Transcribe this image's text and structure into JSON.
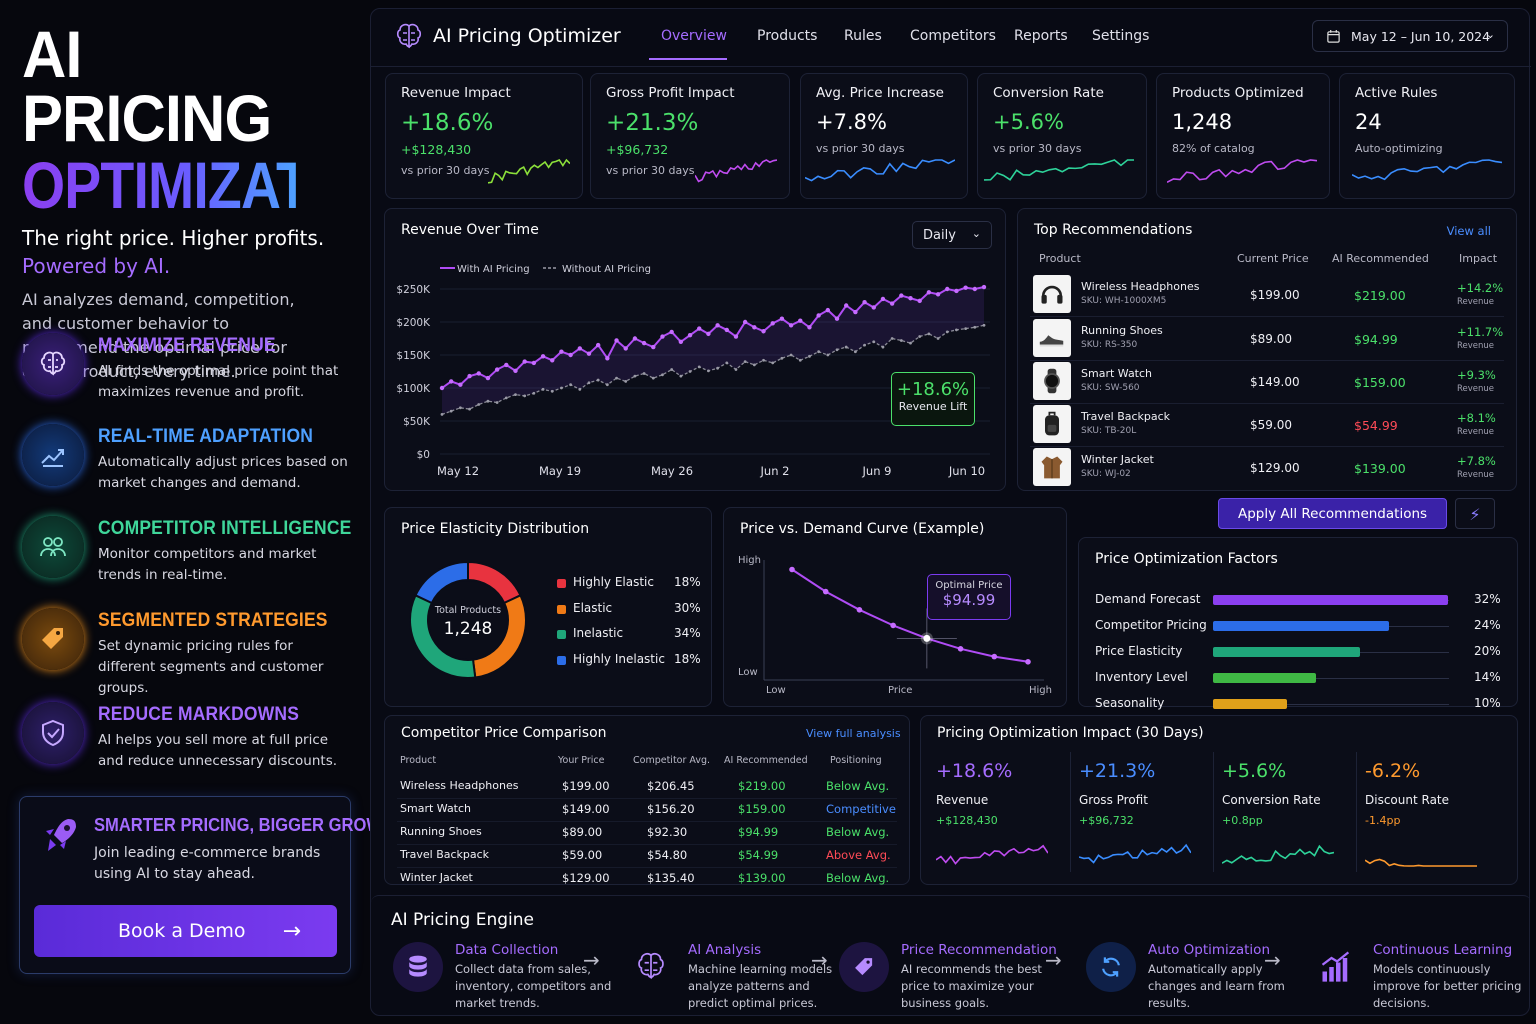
{
  "hero": {
    "title1": "AI PRICING",
    "title2": "OPTIMIZATION",
    "tagline": "The right price. Higher profits.",
    "tagline2": "Powered by AI.",
    "intro": "AI analyzes demand, competition, and customer behavior to recommend the optimal price for every product, every time."
  },
  "features": [
    {
      "title": "MAXIMIZE REVENUE",
      "desc": "AI finds the optimal price point that maximizes revenue and profit.",
      "icon": "brain-icon",
      "color": "#a56cff"
    },
    {
      "title": "REAL-TIME ADAPTATION",
      "desc": "Automatically adjust prices based on market changes and demand.",
      "icon": "trend-chart-icon",
      "color": "#4ea0ff"
    },
    {
      "title": "COMPETITOR INTELLIGENCE",
      "desc": "Monitor competitors and market trends in real-time.",
      "icon": "users-icon",
      "color": "#3fd69a"
    },
    {
      "title": "SEGMENTED STRATEGIES",
      "desc": "Set dynamic pricing rules for different segments and customer groups.",
      "icon": "price-tag-icon",
      "color": "#ff9a2e"
    },
    {
      "title": "REDUCE MARKDOWNS",
      "desc": "AI helps you sell more at full price and reduce unnecessary discounts.",
      "icon": "shield-check-icon",
      "color": "#a56cff"
    }
  ],
  "cta": {
    "title": "SMARTER PRICING, BIGGER GROWTH",
    "desc": "Join leading e-commerce brands using AI to stay ahead.",
    "button": "Book a Demo",
    "icon": "rocket-icon"
  },
  "nav": {
    "app_title": "AI Pricing Optimizer",
    "tabs": [
      "Overview",
      "Products",
      "Rules",
      "Competitors",
      "Reports",
      "Settings"
    ],
    "active": "Overview",
    "date_range": "May 12 – Jun 10, 2024"
  },
  "kpis": [
    {
      "label": "Revenue Impact",
      "value": "+18.6%",
      "sub": "+$128,430",
      "note": "vs prior 30 days",
      "color": "#4be06a",
      "spark": "#8ce03a"
    },
    {
      "label": "Gross Profit Impact",
      "value": "+21.3%",
      "sub": "+$96,732",
      "note": "vs prior 30 days",
      "color": "#4be06a",
      "spark": "#c04cf0"
    },
    {
      "label": "Avg. Price Increase",
      "value": "+7.8%",
      "sub": "",
      "note": "vs prior 30 days",
      "color": "#ffffff",
      "spark": "#3a8dff"
    },
    {
      "label": "Conversion Rate",
      "value": "+5.6%",
      "sub": "",
      "note": "vs prior 30 days",
      "color": "#4be06a",
      "spark": "#2ed39a"
    },
    {
      "label": "Products Optimized",
      "value": "1,248",
      "sub": "",
      "note": "82% of catalog",
      "color": "#ffffff",
      "spark": "#c04cf0"
    },
    {
      "label": "Active Rules",
      "value": "24",
      "sub": "",
      "note": "Auto-optimizing",
      "color": "#ffffff",
      "spark": "#3a8dff"
    }
  ],
  "revenue_chart": {
    "title": "Revenue Over Time",
    "period": "Daily",
    "legend_with": "With AI Pricing",
    "legend_without": "Without AI Pricing",
    "badge_value": "+18.6%",
    "badge_label": "Revenue Lift"
  },
  "chart_data": [
    {
      "type": "line",
      "title": "Revenue Over Time",
      "x_ticks": [
        "May 12",
        "May 19",
        "May 26",
        "Jun 2",
        "Jun 9",
        "Jun 10"
      ],
      "y_ticks": [
        "$0",
        "$50K",
        "$100K",
        "$150K",
        "$200K",
        "$250K"
      ],
      "ylim": [
        0,
        250000
      ],
      "series": [
        {
          "name": "With AI Pricing",
          "values": [
            100000,
            110000,
            105000,
            118000,
            122000,
            115000,
            128000,
            135000,
            126000,
            140000,
            138000,
            148000,
            142000,
            155000,
            150000,
            160000,
            152000,
            165000,
            145000,
            172000,
            160000,
            175000,
            168000,
            162000,
            178000,
            185000,
            170000,
            180000,
            190000,
            182000,
            195000,
            188000,
            178000,
            200000,
            192000,
            186000,
            198000,
            205000,
            195000,
            202000,
            192000,
            210000,
            218000,
            205000,
            225000,
            215000,
            230000,
            222000,
            235000,
            228000,
            240000,
            236000,
            232000,
            245000,
            242000,
            250000,
            247000,
            252000,
            250000,
            253000
          ]
        },
        {
          "name": "Without AI Pricing",
          "values": [
            60000,
            65000,
            70000,
            68000,
            75000,
            80000,
            78000,
            85000,
            90000,
            88000,
            92000,
            98000,
            95000,
            100000,
            105000,
            98000,
            108000,
            112000,
            105000,
            115000,
            110000,
            118000,
            122000,
            115000,
            120000,
            128000,
            118000,
            125000,
            132000,
            126000,
            130000,
            138000,
            128000,
            140000,
            135000,
            142000,
            138000,
            145000,
            150000,
            142000,
            148000,
            155000,
            150000,
            158000,
            162000,
            155000,
            165000,
            170000,
            162000,
            175000,
            172000,
            168000,
            178000,
            182000,
            175000,
            185000,
            188000,
            190000,
            192000,
            195000
          ]
        }
      ]
    },
    {
      "type": "pie",
      "title": "Price Elasticity Distribution",
      "center_label": "Total Products",
      "center_value": "1,248",
      "categories": [
        "Highly Elastic",
        "Elastic",
        "Inelastic",
        "Highly Inelastic"
      ],
      "values": [
        18,
        30,
        34,
        18
      ],
      "colors": [
        "#e8333f",
        "#f07a16",
        "#1fa67a",
        "#2c6de8"
      ],
      "labels": [
        "18%",
        "30%",
        "34%",
        "18%"
      ]
    },
    {
      "type": "line",
      "title": "Price vs. Demand Curve (Example)",
      "xlabel": "Price",
      "ylabel": "",
      "x_ticks": [
        "Low",
        "Price",
        "High"
      ],
      "y_ticks": [
        "High",
        "Low"
      ],
      "x": [
        1,
        2,
        3,
        4,
        5,
        6,
        7,
        8
      ],
      "y": [
        95,
        78,
        64,
        52,
        42,
        34,
        28,
        24
      ],
      "annotation": {
        "label": "Optimal Price",
        "value": "$94.99",
        "x": 5
      }
    },
    {
      "type": "bar",
      "title": "Price Optimization Factors",
      "categories": [
        "Demand Forecast",
        "Competitor Pricing",
        "Price Elasticity",
        "Inventory Level",
        "Seasonality"
      ],
      "values": [
        32,
        24,
        20,
        14,
        10
      ],
      "labels": [
        "32%",
        "24%",
        "20%",
        "14%",
        "10%"
      ],
      "colors": [
        "#8b3ff0",
        "#2c6de8",
        "#1fa67a",
        "#3fb844",
        "#e0a01a"
      ],
      "xlim": [
        0,
        34
      ]
    }
  ],
  "recommendations": {
    "title": "Top Recommendations",
    "view_all": "View all",
    "headers": [
      "Product",
      "Current Price",
      "AI Recommended",
      "Impact"
    ],
    "rows": [
      {
        "name": "Wireless Headphones",
        "sku": "SKU: WH-1000XM5",
        "current": "$199.00",
        "rec": "$219.00",
        "impact": "+14.2%",
        "impact_label": "Revenue",
        "rec_color": "#4be06a",
        "icon": "headphones-icon"
      },
      {
        "name": "Running Shoes",
        "sku": "SKU: RS-350",
        "current": "$89.00",
        "rec": "$94.99",
        "impact": "+11.7%",
        "impact_label": "Revenue",
        "rec_color": "#4be06a",
        "icon": "shoe-icon"
      },
      {
        "name": "Smart Watch",
        "sku": "SKU: SW-560",
        "current": "$149.00",
        "rec": "$159.00",
        "impact": "+9.3%",
        "impact_label": "Revenue",
        "rec_color": "#4be06a",
        "icon": "watch-icon"
      },
      {
        "name": "Travel Backpack",
        "sku": "SKU: TB-20L",
        "current": "$59.00",
        "rec": "$54.99",
        "impact": "+8.1%",
        "impact_label": "Revenue",
        "rec_color": "#ff4b57",
        "icon": "backpack-icon"
      },
      {
        "name": "Winter Jacket",
        "sku": "SKU: WJ-02",
        "current": "$129.00",
        "rec": "$139.00",
        "impact": "+7.8%",
        "impact_label": "Revenue",
        "rec_color": "#4be06a",
        "icon": "jacket-icon"
      }
    ],
    "apply_button": "Apply All Recommendations"
  },
  "elasticity": {
    "title": "Price Elasticity Distribution"
  },
  "demand": {
    "title": "Price vs. Demand Curve (Example)",
    "opt_label": "Optimal Price",
    "opt_value": "$94.99",
    "y_high": "High",
    "y_low": "Low",
    "x_low": "Low",
    "x_mid": "Price",
    "x_high": "High"
  },
  "factors": {
    "title": "Price Optimization Factors"
  },
  "competitor": {
    "title": "Competitor Price Comparison",
    "link": "View full analysis",
    "headers": [
      "Product",
      "Your Price",
      "Competitor Avg.",
      "AI Recommended",
      "Positioning"
    ],
    "rows": [
      {
        "product": "Wireless Headphones",
        "yours": "$199.00",
        "comp": "$206.45",
        "rec": "$219.00",
        "pos": "Below Avg.",
        "rec_color": "#4be06a",
        "pos_color": "#4be06a"
      },
      {
        "product": "Smart Watch",
        "yours": "$149.00",
        "comp": "$156.20",
        "rec": "$159.00",
        "pos": "Competitive",
        "rec_color": "#4be06a",
        "pos_color": "#4a8dff"
      },
      {
        "product": "Running Shoes",
        "yours": "$89.00",
        "comp": "$92.30",
        "rec": "$94.99",
        "pos": "Below Avg.",
        "rec_color": "#4be06a",
        "pos_color": "#4be06a"
      },
      {
        "product": "Travel Backpack",
        "yours": "$59.00",
        "comp": "$54.80",
        "rec": "$54.99",
        "pos": "Above Avg.",
        "rec_color": "#4be06a",
        "pos_color": "#ff4b57"
      },
      {
        "product": "Winter Jacket",
        "yours": "$129.00",
        "comp": "$135.40",
        "rec": "$139.00",
        "pos": "Below Avg.",
        "rec_color": "#4be06a",
        "pos_color": "#4be06a"
      }
    ]
  },
  "impact": {
    "title": "Pricing Optimization Impact (30 Days)",
    "items": [
      {
        "value": "+18.6%",
        "label": "Revenue",
        "sub": "+$128,430",
        "color": "#a56cff",
        "sub_color": "#4be06a",
        "spark": "#c04cf0"
      },
      {
        "value": "+21.3%",
        "label": "Gross Profit",
        "sub": "+$96,732",
        "color": "#4a8dff",
        "sub_color": "#4be06a",
        "spark": "#3a8dff"
      },
      {
        "value": "+5.6%",
        "label": "Conversion Rate",
        "sub": "+0.8pp",
        "color": "#4be06a",
        "sub_color": "#4be06a",
        "spark": "#2ed39a"
      },
      {
        "value": "-6.2%",
        "label": "Discount Rate",
        "sub": "-1.4pp",
        "color": "#ff9a2e",
        "sub_color": "#ff9a2e",
        "spark": "#ff9a2e"
      }
    ]
  },
  "engine": {
    "title": "AI Pricing Engine",
    "steps": [
      {
        "title": "Data Collection",
        "desc": "Collect data from sales, inventory, competitors and market trends.",
        "icon": "database-icon"
      },
      {
        "title": "AI Analysis",
        "desc": "Machine learning models analyze patterns and predict optimal prices.",
        "icon": "brain-icon"
      },
      {
        "title": "Price Recommendation",
        "desc": "AI recommends the best price to maximize your business goals.",
        "icon": "price-tag-icon"
      },
      {
        "title": "Auto Optimization",
        "desc": "Automatically apply changes and learn from results.",
        "icon": "refresh-icon"
      },
      {
        "title": "Continuous Learning",
        "desc": "Models continuously improve for better pricing decisions.",
        "icon": "bar-chart-icon"
      }
    ]
  }
}
